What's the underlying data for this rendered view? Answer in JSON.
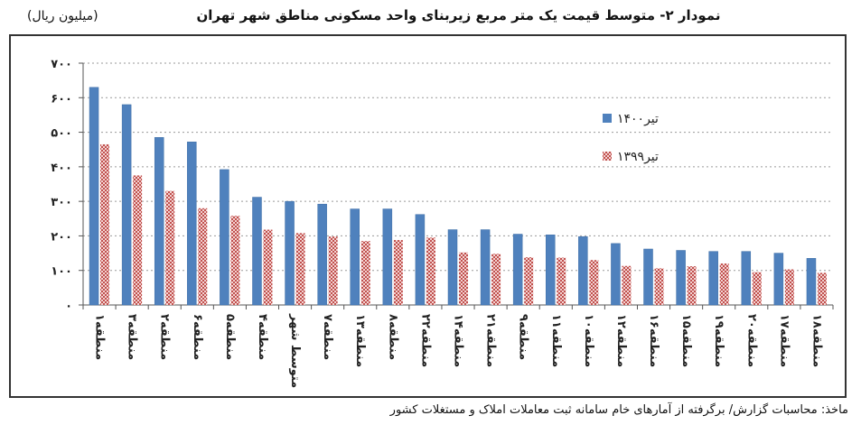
{
  "title": "نمودار ۲- متوسط قیمت یک متر مربع زیربنای واحد مسکونی مناطق شهر تهران",
  "unit": "(میلیون ریال)",
  "source": "ماخذ: محاسبات گزارش/ برگرفته از آمارهای خام سامانه ثبت معاملات املاک و مستغلات کشور",
  "colors": {
    "s1400": "#4f81bd",
    "s1399": "#c0504d"
  },
  "chart_data": {
    "type": "bar",
    "categories": [
      "منطقه۱",
      "منطقه۳",
      "منطقه۲",
      "منطقه۶",
      "منطقه۵",
      "منطقه۴",
      "متوسط شهر",
      "منطقه۷",
      "منطقه۱۳",
      "منطقه۸",
      "منطقه۲۲",
      "منطقه۱۴",
      "منطقه۲۱",
      "منطقه۹",
      "منطقه۱۱",
      "منطقه۱۰",
      "منطقه۱۲",
      "منطقه۱۶",
      "منطقه۱۵",
      "منطقه۱۹",
      "منطقه۲۰",
      "منطقه۱۷",
      "منطقه۱۸"
    ],
    "series": [
      {
        "name": "تیر۱۴۰۰",
        "values": [
          630,
          580,
          485,
          472,
          392,
          312,
          300,
          292,
          278,
          278,
          262,
          218,
          218,
          205,
          203,
          198,
          178,
          162,
          158,
          155,
          155,
          150,
          135
        ]
      },
      {
        "name": "تیر۱۳۹۹",
        "values": [
          465,
          375,
          330,
          280,
          258,
          218,
          208,
          198,
          185,
          188,
          195,
          152,
          148,
          138,
          137,
          130,
          113,
          106,
          112,
          120,
          95,
          103,
          93
        ]
      }
    ],
    "ylim": [
      0,
      700
    ],
    "yticks": [
      "۰",
      "۱۰۰",
      "۲۰۰",
      "۳۰۰",
      "۴۰۰",
      "۵۰۰",
      "۶۰۰",
      "۷۰۰"
    ],
    "grid": true,
    "legend_position": "right"
  }
}
